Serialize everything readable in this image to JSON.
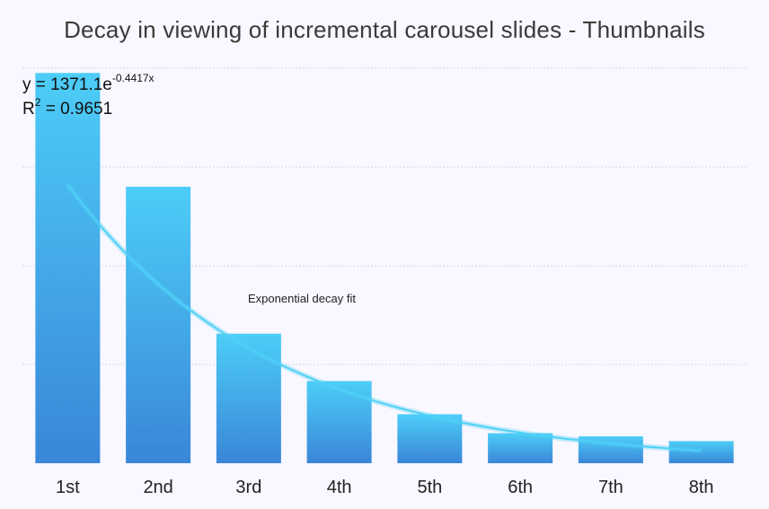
{
  "chart_data": {
    "type": "bar",
    "title": "Decay in viewing of incremental carousel slides - Thumbnails",
    "categories": [
      "1st",
      "2nd",
      "3rd",
      "4th",
      "5th",
      "6th",
      "7th",
      "8th"
    ],
    "values": [
      1235,
      875,
      410,
      260,
      155,
      95,
      85,
      70
    ],
    "ylim": [
      0,
      1250
    ],
    "grid": true,
    "trendline": {
      "type": "exponential",
      "label": "Exponential decay fit",
      "a": 1371.1,
      "b": -0.4417,
      "equation_prefix": "y = 1371.1e",
      "equation_exponent": "-0.4417x",
      "r2_prefix": "R",
      "r2_sup": "2",
      "r2_value": " = 0.9651"
    },
    "colors": {
      "bar_top": "#4dcdf7",
      "bar_bottom": "#3a86d8",
      "trend": "#4fd0f7",
      "grid": "#d9d9d9"
    }
  }
}
